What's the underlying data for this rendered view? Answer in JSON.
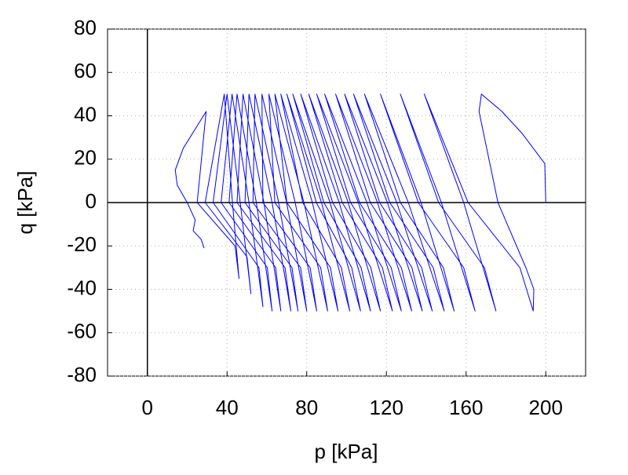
{
  "chart_data": {
    "type": "line",
    "xlabel": "p [kPa]",
    "ylabel": "q [kPa]",
    "color": "#0000ff",
    "xlim": [
      -20,
      220
    ],
    "xticks": [
      0,
      40,
      80,
      120,
      160,
      200
    ],
    "ylim": [
      -80,
      80
    ],
    "yticks": [
      -80,
      -60,
      -40,
      -20,
      0,
      20,
      40,
      60,
      80
    ],
    "grid": true,
    "zero_lines": true,
    "x": [
      200,
      199.5,
      188,
      178,
      167.7,
      166.5,
      176,
      190,
      194,
      193.7,
      187,
      161,
      139,
      158.8,
      175,
      169.2,
      146.2,
      127,
      147.6,
      164.5,
      158.8,
      136,
      117,
      137.4,
      154,
      148.6,
      127,
      109,
      131,
      149,
      143.5,
      121.7,
      103.5,
      125.2,
      143,
      137.7,
      116.6,
      99,
      120.5,
      138,
      132.8,
      111.9,
      94.5,
      115.5,
      132.7,
      127.5,
      106.5,
      89,
      110.2,
      127.5,
      122.4,
      102,
      85,
      105.9,
      123,
      118,
      97.8,
      81,
      100.8,
      117,
      112.2,
      93,
      77,
      96.3,
      112,
      107.3,
      88.6,
      73,
      91.7,
      107,
      102.6,
      84.8,
      70,
      87.4,
      101.6,
      97.4,
      78,
      67,
      82.8,
      95.7,
      91.9,
      70,
      64,
      78.6,
      90.5,
      87,
      64,
      61,
      74.2,
      85,
      81.7,
      58,
      57.5,
      69.9,
      80,
      76.9,
      53,
      54,
      65.9,
      75.6,
      72.6,
      49,
      51,
      62.6,
      72,
      69.1,
      45,
      48,
      58.5,
      67,
      64.4,
      41,
      45,
      54.7,
      62.6,
      60.2,
      37,
      42.5,
      51,
      58,
      56,
      33,
      40,
      46.6,
      52,
      50,
      29,
      38.6,
      42.7,
      46,
      44,
      25,
      29.5,
      18,
      14,
      15,
      20,
      24,
      23,
      25,
      27,
      28.5
    ],
    "values": [
      0,
      18,
      32,
      42,
      50,
      42,
      0,
      -30,
      -40,
      -50,
      -30,
      0,
      50,
      0,
      -50,
      -30,
      0,
      50,
      0,
      -50,
      -30,
      0,
      50,
      0,
      -50,
      -30,
      0,
      50,
      0,
      -50,
      -30,
      0,
      50,
      0,
      -50,
      -30,
      0,
      50,
      0,
      -50,
      -30,
      0,
      50,
      0,
      -50,
      -30,
      0,
      50,
      0,
      -50,
      -30,
      0,
      50,
      0,
      -50,
      -30,
      0,
      50,
      0,
      -50,
      -30,
      0,
      50,
      0,
      -50,
      -30,
      0,
      50,
      0,
      -50,
      -30,
      0,
      50,
      0,
      -50,
      -30,
      0,
      50,
      0,
      -50,
      -30,
      0,
      50,
      0,
      -50,
      -30,
      0,
      50,
      0,
      -50,
      -30,
      0,
      50,
      0,
      -50,
      -30,
      0,
      50,
      0,
      -50,
      -30,
      0,
      50,
      0,
      -50,
      -30,
      0,
      50,
      0,
      -50,
      -30,
      0,
      50,
      0,
      -50,
      -30,
      0,
      50,
      0,
      -48,
      -30,
      0,
      50,
      0,
      -42,
      -25,
      0,
      50,
      0,
      -35,
      -20,
      0,
      42,
      25,
      15,
      8,
      0,
      -8,
      -13,
      -15,
      -17,
      -21
    ]
  }
}
